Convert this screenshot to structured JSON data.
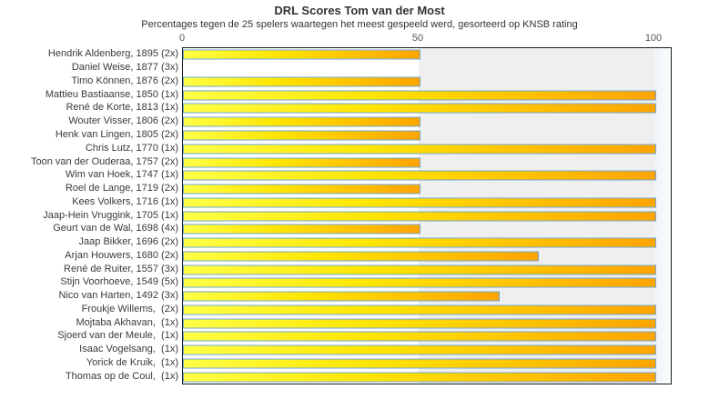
{
  "chart_data": {
    "type": "bar",
    "orientation": "horizontal",
    "title": "DRL Scores Tom van der Most",
    "subtitle": "Percentages tegen de 25 spelers waartegen het meest gespeeld werd, gesorteerd op KNSB rating",
    "xlabel": "",
    "ylabel": "",
    "xlim": [
      0,
      103.7
    ],
    "x_ticks": [
      "0",
      "50",
      "100"
    ],
    "grid": "background-band-above-50",
    "legend": "none",
    "categories": [
      "Hendrik Aldenberg, 1895 (2x)",
      "Daniel Weise, 1877 (3x)",
      "Timo Können, 1876 (2x)",
      "Mattieu Bastiaanse, 1850 (1x)",
      "René de Korte, 1813 (1x)",
      "Wouter Visser, 1806 (2x)",
      "Henk van Lingen, 1805 (2x)",
      "Chris Lutz, 1770 (1x)",
      "Toon van der Ouderaa, 1757 (2x)",
      "Wim van Hoek, 1747 (1x)",
      "Roel de Lange, 1719 (2x)",
      "Kees Volkers, 1716 (1x)",
      "Jaap-Hein Vruggink, 1705 (1x)",
      "Geurt van de Wal, 1698 (4x)",
      "Jaap Bikker, 1696 (2x)",
      "Arjan Houwers, 1680 (2x)",
      "René de Ruiter, 1557 (3x)",
      "Stijn Voorhoeve, 1549 (5x)",
      "Nico van Harten, 1492 (3x)",
      "Froukje Willems,  (2x)",
      "Mojtaba Akhavan,  (1x)",
      "Sjoerd van der Meule,  (1x)",
      "Isaac Vogelsang,  (1x)",
      "Yorick de Kruik,  (1x)",
      "Thomas op de Coul,  (1x)"
    ],
    "values": [
      50,
      0,
      50,
      100,
      100,
      50,
      50,
      100,
      50,
      100,
      50,
      100,
      100,
      50,
      100,
      75,
      100,
      100,
      66.7,
      100,
      100,
      100,
      100,
      100,
      100
    ]
  },
  "colors": {
    "bar_gradient_start": "#ffff45",
    "bar_gradient_mid": "#ffd700",
    "bar_gradient_end": "#fda400",
    "bar_border": "#72a8d2",
    "band_0_50": "#ffffff",
    "band_50_100": "#efefef",
    "band_over_100": "#eef4f8",
    "plot_border": "#1c1c1c",
    "text": "#333333",
    "tick_text": "#555555"
  }
}
